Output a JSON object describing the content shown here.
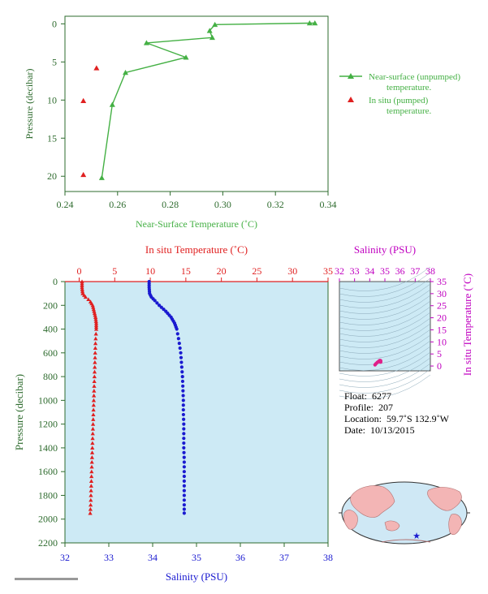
{
  "chart_data": [
    {
      "id": "near_surface",
      "type": "line",
      "xlabel": "Near-Surface Temperature (˚C)",
      "ylabel": "Pressure (decibar)",
      "xlim": [
        0.24,
        0.34
      ],
      "ylim": [
        22,
        -1
      ],
      "xticks": [
        "0.24",
        "0.26",
        "0.28",
        "0.30",
        "0.32",
        "0.34"
      ],
      "yticks": [
        "0",
        "5",
        "10",
        "15",
        "20"
      ],
      "series": [
        {
          "name": "Near-surface (unpumped) temperature.",
          "color": "#44b044",
          "marker": "triangle",
          "points": [
            [
              0.335,
              -0.1
            ],
            [
              0.333,
              -0.1
            ],
            [
              0.297,
              0.1
            ],
            [
              0.295,
              0.9
            ],
            [
              0.296,
              1.8
            ],
            [
              0.271,
              2.5
            ],
            [
              0.286,
              4.4
            ],
            [
              0.263,
              6.4
            ],
            [
              0.258,
              10.6
            ],
            [
              0.254,
              20.2
            ]
          ]
        },
        {
          "name": "In situ (pumped) temperature.",
          "color": "#e02020",
          "marker": "triangle",
          "points": [
            [
              0.252,
              5.8
            ],
            [
              0.247,
              10.1
            ],
            [
              0.247,
              19.8
            ]
          ]
        }
      ]
    },
    {
      "id": "profile",
      "type": "scatter",
      "ylabel": "Pressure (decibar)",
      "ylim": [
        2200,
        0
      ],
      "yticks": [
        "0",
        "200",
        "400",
        "600",
        "800",
        "1000",
        "1200",
        "1400",
        "1600",
        "1800",
        "2000",
        "2200"
      ],
      "top_axis": {
        "label": "In situ Temperature (˚C)",
        "lim": [
          -2,
          35
        ],
        "ticks": [
          "0",
          "5",
          "10",
          "15",
          "20",
          "25",
          "30",
          "35"
        ],
        "color": "#e02020"
      },
      "bottom_axis": {
        "label": "Salinity (PSU)",
        "lim": [
          32,
          38
        ],
        "ticks": [
          "32",
          "33",
          "34",
          "35",
          "36",
          "37",
          "38"
        ],
        "color": "#1a1ad0"
      },
      "temperature_profile": [
        [
          0,
          0.4
        ],
        [
          50,
          0.4
        ],
        [
          100,
          0.5
        ],
        [
          130,
          0.9
        ],
        [
          150,
          1.3
        ],
        [
          170,
          1.6
        ],
        [
          200,
          1.9
        ],
        [
          250,
          2.1
        ],
        [
          300,
          2.3
        ],
        [
          350,
          2.4
        ],
        [
          400,
          2.4
        ],
        [
          500,
          2.3
        ],
        [
          600,
          2.25
        ],
        [
          700,
          2.2
        ],
        [
          800,
          2.15
        ],
        [
          900,
          2.1
        ],
        [
          1000,
          2.05
        ],
        [
          1100,
          2.0
        ],
        [
          1200,
          1.95
        ],
        [
          1300,
          1.9
        ],
        [
          1400,
          1.85
        ],
        [
          1500,
          1.8
        ],
        [
          1600,
          1.75
        ],
        [
          1700,
          1.7
        ],
        [
          1800,
          1.65
        ],
        [
          1900,
          1.6
        ],
        [
          1950,
          1.55
        ]
      ],
      "salinity_profile": [
        [
          0,
          33.92
        ],
        [
          50,
          33.92
        ],
        [
          100,
          33.93
        ],
        [
          130,
          33.97
        ],
        [
          160,
          34.05
        ],
        [
          200,
          34.15
        ],
        [
          250,
          34.3
        ],
        [
          300,
          34.42
        ],
        [
          350,
          34.5
        ],
        [
          400,
          34.55
        ],
        [
          500,
          34.6
        ],
        [
          600,
          34.64
        ],
        [
          700,
          34.66
        ],
        [
          800,
          34.68
        ],
        [
          900,
          34.69
        ],
        [
          1000,
          34.7
        ],
        [
          1100,
          34.7
        ],
        [
          1200,
          34.71
        ],
        [
          1300,
          34.71
        ],
        [
          1400,
          34.71
        ],
        [
          1500,
          34.72
        ],
        [
          1600,
          34.72
        ],
        [
          1700,
          34.72
        ],
        [
          1800,
          34.72
        ],
        [
          1900,
          34.72
        ],
        [
          1950,
          34.72
        ]
      ]
    },
    {
      "id": "ts_diagram",
      "type": "scatter",
      "top_axis": {
        "label": "Salinity (PSU)",
        "lim": [
          32,
          38
        ],
        "ticks": [
          "32",
          "33",
          "34",
          "35",
          "36",
          "37",
          "38"
        ],
        "color": "#c000c0"
      },
      "right_axis": {
        "label": "In situ Temperature (˚C)",
        "lim": [
          -2,
          35
        ],
        "ticks": [
          "0",
          "5",
          "10",
          "15",
          "20",
          "25",
          "30",
          "35"
        ],
        "color": "#c000c0"
      },
      "points": [
        [
          34.35,
          0.5
        ],
        [
          34.4,
          0.9
        ],
        [
          34.5,
          1.5
        ],
        [
          34.6,
          2.0
        ],
        [
          34.66,
          2.3
        ],
        [
          34.7,
          2.3
        ],
        [
          34.72,
          2.2
        ],
        [
          34.72,
          2.0
        ],
        [
          34.72,
          1.8
        ],
        [
          34.72,
          1.6
        ]
      ],
      "color": "#e0208a"
    }
  ],
  "info": {
    "float_label": "Float:",
    "float_value": "6277",
    "profile_label": "Profile:",
    "profile_value": "207",
    "location_label": "Location:",
    "location_value": "59.7˚S  132.9˚W",
    "date_label": "Date:",
    "date_value": "10/13/2015"
  },
  "colors": {
    "panel_bg": "#cdeaf5",
    "axis_green": "#2e6b2e",
    "land": "#f3b5b5",
    "ocean": "#cfe8f5"
  }
}
